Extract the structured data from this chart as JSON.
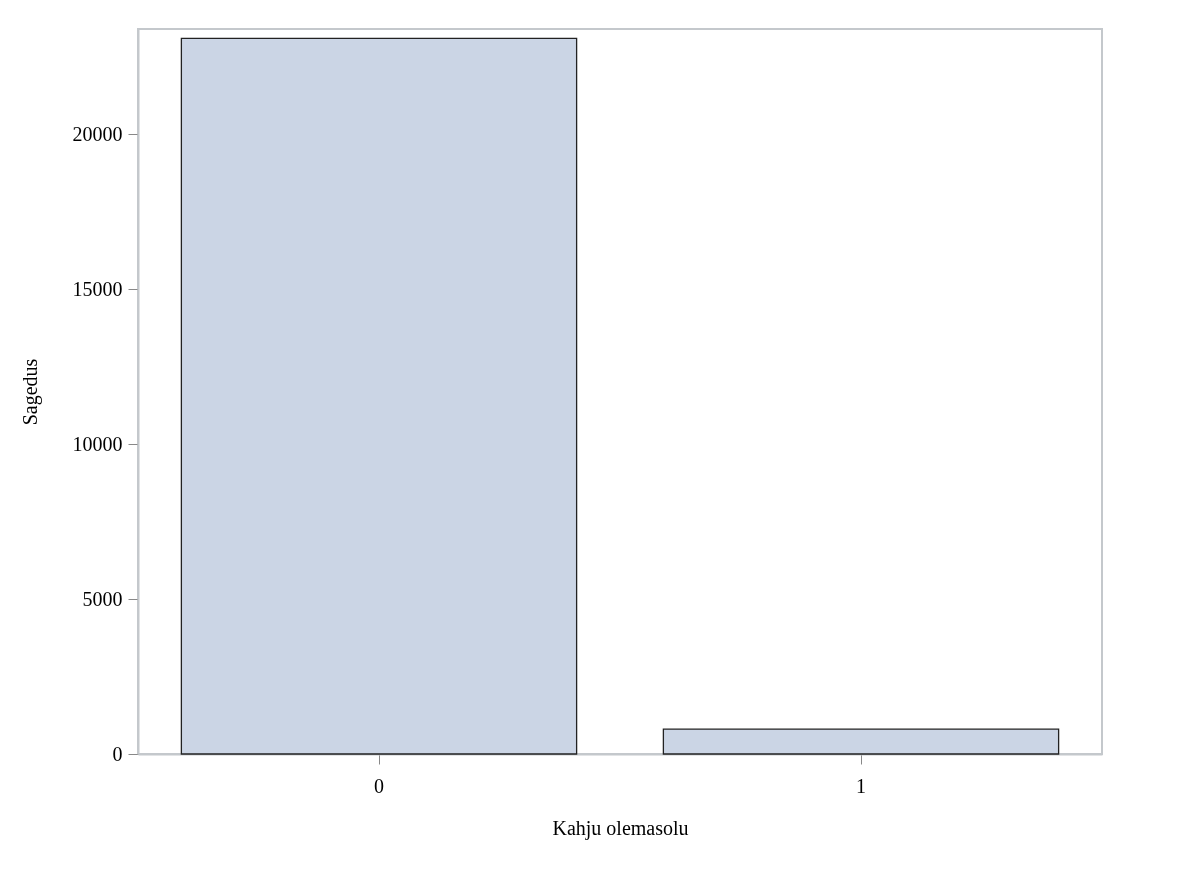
{
  "chart_data": {
    "type": "bar",
    "xlabel": "Kahju olemasolu",
    "ylabel": "Sagedus",
    "categories": [
      "0",
      "1"
    ],
    "values": [
      23100,
      800
    ],
    "color": "#cbd5e5",
    "ylim": [
      0,
      23400
    ],
    "yticks": [
      0,
      5000,
      10000,
      15000,
      20000
    ],
    "grid": false
  }
}
